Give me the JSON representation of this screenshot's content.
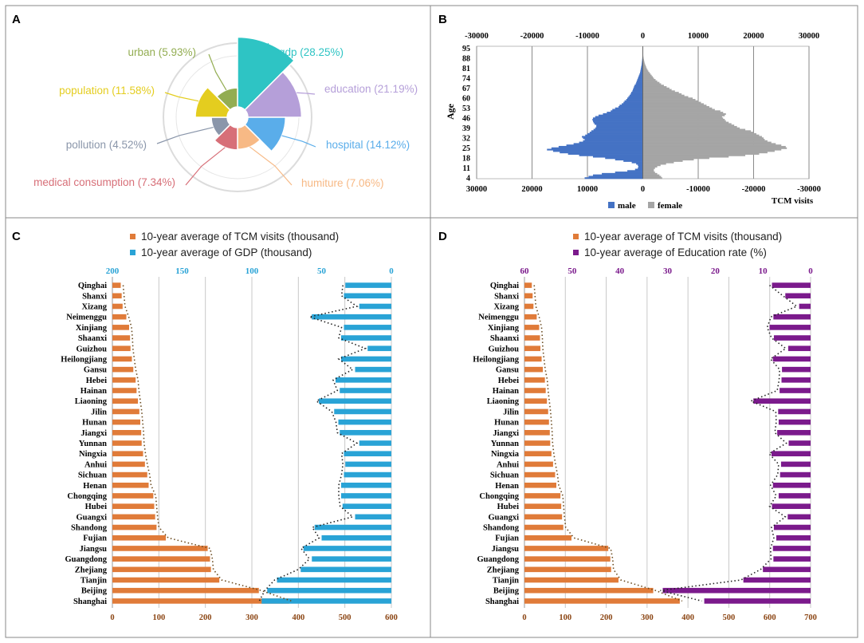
{
  "panels": {
    "A": {
      "letter": "A"
    },
    "B": {
      "letter": "B"
    },
    "C": {
      "letter": "C"
    },
    "D": {
      "letter": "D"
    }
  },
  "chart_data": [
    {
      "panel": "A",
      "type": "pie",
      "subtype": "nightingale-rose",
      "slices": [
        {
          "name": "gdp",
          "value": 28.25,
          "label": "gdp (28.25%)",
          "color": "#2ec4c4"
        },
        {
          "name": "education",
          "value": 21.19,
          "label": "education (21.19%)",
          "color": "#b59fd9"
        },
        {
          "name": "hospital",
          "value": 14.12,
          "label": "hospital (14.12%)",
          "color": "#5aadea"
        },
        {
          "name": "humiture",
          "value": 7.06,
          "label": "humiture (7.06%)",
          "color": "#f7b985"
        },
        {
          "name": "medical consumption",
          "value": 7.34,
          "label": "medical consumption (7.34%)",
          "color": "#d76f78"
        },
        {
          "name": "pollution",
          "value": 4.52,
          "label": "pollution (4.52%)",
          "color": "#8a96aa"
        },
        {
          "name": "population",
          "value": 11.58,
          "label": "population (11.58%)",
          "color": "#e4cd1f"
        },
        {
          "name": "urban",
          "value": 5.93,
          "label": "urban (5.93%)",
          "color": "#93ad52"
        }
      ]
    },
    {
      "panel": "B",
      "type": "bar",
      "subtype": "population-pyramid",
      "ylabel": "Age",
      "xlabel": "TCM visits",
      "top_ticks": [
        "-30000",
        "-20000",
        "-10000",
        "0",
        "10000",
        "20000",
        "30000"
      ],
      "bottom_ticks": [
        "30000",
        "20000",
        "10000",
        "0",
        "-10000",
        "-20000",
        "-30000"
      ],
      "age_ticks": [
        "95",
        "88",
        "81",
        "74",
        "67",
        "60",
        "53",
        "46",
        "39",
        "32",
        "25",
        "18",
        "11",
        "4"
      ],
      "xlim": [
        -30000,
        30000
      ],
      "legend": [
        {
          "name": "male",
          "color": "#4472c4"
        },
        {
          "name": "female",
          "color": "#a5a5a5"
        }
      ],
      "series": [
        {
          "name": "male",
          "age_start": 4,
          "values": [
            10500,
            9800,
            9000,
            7400,
            5000,
            2800,
            1400,
            900,
            800,
            900,
            1200,
            2000,
            3500,
            5000,
            6800,
            9000,
            11500,
            13500,
            15000,
            16200,
            17300,
            16500,
            15200,
            13800,
            12500,
            11500,
            10800,
            10500,
            10800,
            11000,
            10400,
            10000,
            9600,
            9300,
            8900,
            8600,
            8400,
            8400,
            8700,
            8900,
            9000,
            9100,
            9000,
            8600,
            8000,
            7200,
            6500,
            5800,
            5500,
            5000,
            4400,
            4200,
            3800,
            3500,
            3300,
            3000,
            2800,
            2600,
            2400,
            2200,
            2100,
            1900,
            1800,
            1700,
            1600,
            1500,
            1300,
            1200,
            1100,
            1000,
            900,
            800,
            700,
            600,
            500,
            450,
            400,
            350,
            300,
            250,
            200,
            180,
            150,
            120,
            100,
            80,
            60,
            50,
            40,
            30,
            20,
            15,
            10
          ]
        },
        {
          "name": "female",
          "age_start": 4,
          "values": [
            3500,
            3300,
            3000,
            2600,
            2200,
            2000,
            2000,
            2200,
            2600,
            3200,
            4200,
            5600,
            7200,
            9200,
            12000,
            15500,
            18500,
            21000,
            22500,
            23800,
            25000,
            26000,
            25800,
            25000,
            24000,
            23200,
            22500,
            22000,
            21800,
            21500,
            21000,
            20500,
            20000,
            19500,
            18500,
            17500,
            17000,
            16500,
            16000,
            15500,
            15000,
            14800,
            14500,
            14300,
            14800,
            15000,
            14500,
            14000,
            13000,
            12500,
            12000,
            11500,
            11000,
            10500,
            10000,
            9500,
            9000,
            8200,
            7500,
            7000,
            6500,
            5800,
            5200,
            4800,
            4300,
            3800,
            3300,
            3000,
            2600,
            2300,
            2000,
            1800,
            1600,
            1400,
            1200,
            1000,
            850,
            700,
            600,
            500,
            400,
            320,
            260,
            200,
            150,
            110,
            80,
            60,
            40,
            30,
            20,
            15,
            10
          ]
        }
      ]
    },
    {
      "panel": "C",
      "type": "bar",
      "subtype": "horizontal-dual-axis",
      "categories": [
        "Qinghai",
        "Shanxi",
        "Xizang",
        "Neimenggu",
        "Xinjiang",
        "Shaanxi",
        "Guizhou",
        "Heilongjiang",
        "Gansu",
        "Hebei",
        "Hainan",
        "Liaoning",
        "Jilin",
        "Hunan",
        "Jiangxi",
        "Yunnan",
        "Ningxia",
        "Anhui",
        "Sichuan",
        "Henan",
        "Chongqing",
        "Hubei",
        "Guangxi",
        "Shandong",
        "Fujian",
        "Jiangsu",
        "Guangdong",
        "Zhejiang",
        "Tianjin",
        "Beijing",
        "Shanghai"
      ],
      "legend": [
        "10-year average of TCM visits (thousand)",
        "10-year average of GDP (thousand)"
      ],
      "bottom_axis": {
        "range": [
          0,
          600
        ],
        "ticks": [
          "0",
          "100",
          "200",
          "300",
          "400",
          "500",
          "600"
        ]
      },
      "top_axis": {
        "range": [
          200,
          0
        ],
        "ticks": [
          "200",
          "150",
          "100",
          "50",
          "0"
        ]
      },
      "series": [
        {
          "name": "10-year average of TCM visits (thousand)",
          "axis": "bottom",
          "color": "#e07b39",
          "values": [
            18,
            20,
            22,
            30,
            36,
            38,
            39,
            42,
            45,
            50,
            52,
            55,
            58,
            60,
            62,
            63,
            66,
            70,
            75,
            78,
            88,
            90,
            92,
            95,
            115,
            205,
            210,
            212,
            230,
            315,
            380
          ]
        },
        {
          "name": "10-year average of GDP (thousand)",
          "axis": "top",
          "color": "#29a3d6",
          "values": [
            33,
            34,
            23,
            57,
            34,
            36,
            17,
            36,
            26,
            40,
            37,
            52,
            41,
            38,
            37,
            23,
            34,
            33,
            34,
            36,
            36,
            35,
            26,
            55,
            50,
            63,
            57,
            65,
            82,
            89,
            93
          ]
        }
      ]
    },
    {
      "panel": "D",
      "type": "bar",
      "subtype": "horizontal-dual-axis",
      "categories": [
        "Qinghai",
        "Shanxi",
        "Xizang",
        "Neimenggu",
        "Xinjiang",
        "Shaanxi",
        "Guizhou",
        "Heilongjiang",
        "Gansu",
        "Hebei",
        "Hainan",
        "Liaoning",
        "Jilin",
        "Hunan",
        "Jiangxi",
        "Yunnan",
        "Ningxia",
        "Anhui",
        "Sichuan",
        "Henan",
        "Chongqing",
        "Hubei",
        "Guangxi",
        "Shandong",
        "Fujian",
        "Jiangsu",
        "Guangdong",
        "Zhejiang",
        "Tianjin",
        "Beijing",
        "Shanghai"
      ],
      "legend": [
        "10-year average of TCM visits (thousand)",
        "10-year average of Education rate (%)"
      ],
      "bottom_axis": {
        "range": [
          0,
          700
        ],
        "ticks": [
          "0",
          "100",
          "200",
          "300",
          "400",
          "500",
          "600",
          "700"
        ]
      },
      "top_axis": {
        "range": [
          60,
          0
        ],
        "ticks": [
          "60",
          "50",
          "40",
          "30",
          "20",
          "10",
          "0"
        ]
      },
      "series": [
        {
          "name": "10-year average of TCM visits (thousand)",
          "axis": "bottom",
          "color": "#e07b39",
          "values": [
            18,
            20,
            22,
            30,
            36,
            38,
            39,
            42,
            45,
            50,
            52,
            55,
            58,
            60,
            62,
            63,
            66,
            70,
            75,
            78,
            88,
            90,
            92,
            95,
            115,
            205,
            210,
            212,
            230,
            315,
            380
          ]
        },
        {
          "name": "10-year average of Education rate (%)",
          "axis": "top",
          "color": "#7b1a8c",
          "values": [
            8.1,
            5.3,
            2.4,
            7.8,
            8.6,
            7.7,
            4.7,
            7.9,
            6.0,
            6.1,
            6.5,
            12.0,
            6.8,
            6.7,
            7.0,
            4.6,
            8.2,
            6.2,
            6.4,
            7.9,
            6.7,
            8.1,
            4.8,
            7.7,
            7.2,
            7.9,
            7.8,
            10.0,
            14.1,
            31.0,
            22.3
          ]
        }
      ]
    }
  ]
}
